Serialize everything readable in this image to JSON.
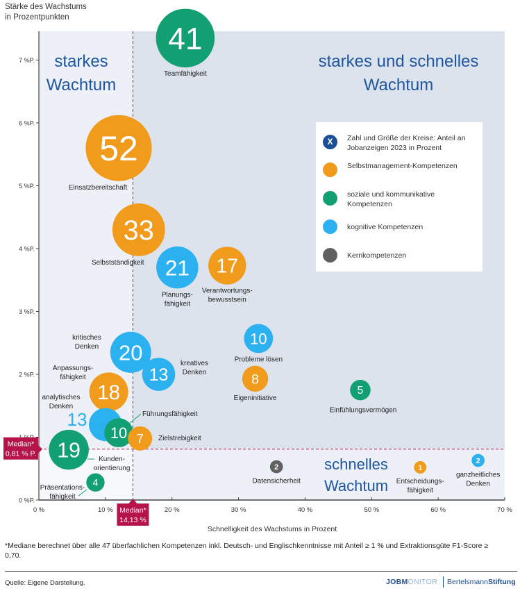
{
  "chart_data": {
    "type": "scatter",
    "subtype": "bubble",
    "y_axis_title": [
      "Stärke des Wachstums",
      "in Prozentpunkten"
    ],
    "xlabel": "Schnelligkeit des Wachstums in Prozent",
    "xlim": [
      0,
      70
    ],
    "ylim": [
      0,
      7.5
    ],
    "x_ticks": [
      0,
      10,
      20,
      30,
      40,
      50,
      60,
      70
    ],
    "x_tick_labels": [
      "0 %",
      "10 %",
      "20 %",
      "30 %",
      "40 %",
      "50 %",
      "60 %",
      "70 %"
    ],
    "y_ticks": [
      0,
      1,
      2,
      3,
      4,
      5,
      6,
      7
    ],
    "y_tick_labels": [
      "0 %P.",
      "1 %P.",
      "2 %P.",
      "3 %P.",
      "4 %P.",
      "5 %P.",
      "6 %P.",
      "7 %P."
    ],
    "median_x": {
      "value": 14.13,
      "label": [
        "Median*",
        "14,13 %"
      ]
    },
    "median_y": {
      "value": 0.81,
      "label": [
        "Median*",
        "0,81 % P."
      ]
    },
    "quadrant_labels": {
      "top_left": [
        "starkes",
        "Wachtum"
      ],
      "top_right": [
        "starkes und schnelles",
        "Wachtum"
      ],
      "bottom_right": [
        "schnelles",
        "Wachtum"
      ]
    },
    "colors": {
      "selbstmanagement": "#f09b1c",
      "sozial": "#12a073",
      "kognitiv": "#2bb1ef",
      "kern": "#616161",
      "legend_x": "#1b4f95",
      "median": "#b5144a",
      "quadrant_text": "#1f56a0",
      "bg_strong": "#dde3ed",
      "bg_weak": "#edf0f6"
    },
    "legend": [
      {
        "key": "size",
        "symbol": "X",
        "label": "Zahl und Größe der Kreise: Anteil an Jobanzeigen 2023 in Prozent"
      },
      {
        "key": "selbstmanagement",
        "label": "Selbstmanagement-Kompetenzen"
      },
      {
        "key": "sozial",
        "label": "soziale und kommunikative Kompetenzen"
      },
      {
        "key": "kognitiv",
        "label": "kognitive Kompetenzen"
      },
      {
        "key": "kern",
        "label": "Kernkompetenzen"
      }
    ],
    "points": [
      {
        "name": "Teamfähigkeit",
        "category": "sozial",
        "x": 22,
        "y": 7.35,
        "share": 41
      },
      {
        "name": "Einsatzbereitschaft",
        "category": "selbstmanagement",
        "x": 12,
        "y": 5.6,
        "share": 52
      },
      {
        "name": "Selbstständigkeit",
        "category": "selbstmanagement",
        "x": 15,
        "y": 4.3,
        "share": 33
      },
      {
        "name": "Planungsfähigkeit",
        "category": "kognitiv",
        "x": 20.8,
        "y": 3.7,
        "share": 21
      },
      {
        "name": "Verantwortungsbewusstsein",
        "category": "selbstmanagement",
        "x": 28.3,
        "y": 3.73,
        "share": 17
      },
      {
        "name": "kritisches Denken",
        "category": "kognitiv",
        "x": 13.8,
        "y": 2.35,
        "share": 20
      },
      {
        "name": "kreatives Denken",
        "category": "kognitiv",
        "x": 18,
        "y": 2.0,
        "share": 13
      },
      {
        "name": "Probleme lösen",
        "category": "kognitiv",
        "x": 33,
        "y": 2.57,
        "share": 10
      },
      {
        "name": "Eigeninitiative",
        "category": "selbstmanagement",
        "x": 32.5,
        "y": 1.93,
        "share": 8
      },
      {
        "name": "Einfühlungsvermögen",
        "category": "sozial",
        "x": 48.3,
        "y": 1.75,
        "share": 5
      },
      {
        "name": "Anpassungsfähigkeit",
        "category": "selbstmanagement",
        "x": 10.5,
        "y": 1.72,
        "share": 18
      },
      {
        "name": "analytisches Denken",
        "category": "kognitiv",
        "x": 10,
        "y": 1.2,
        "share": 13
      },
      {
        "name": "Führungsfähigkeit",
        "category": "sozial",
        "x": 12,
        "y": 1.07,
        "share": 10
      },
      {
        "name": "Zielstrebigkeit",
        "category": "selbstmanagement",
        "x": 15.2,
        "y": 0.98,
        "share": 7
      },
      {
        "name": "Kundenorientierung",
        "category": "sozial",
        "x": 4.5,
        "y": 0.8,
        "share": 19
      },
      {
        "name": "Präsentationsfähigkeit",
        "category": "sozial",
        "x": 8.5,
        "y": 0.28,
        "share": 4
      },
      {
        "name": "Datensicherheit",
        "category": "kern",
        "x": 35.7,
        "y": 0.53,
        "share": 2
      },
      {
        "name": "Entscheidungsfähigkeit",
        "category": "selbstmanagement",
        "x": 57.3,
        "y": 0.52,
        "share": 1
      },
      {
        "name": "ganzheitliches Denken",
        "category": "kognitiv",
        "x": 66,
        "y": 0.63,
        "share": 2
      }
    ]
  },
  "footnote": "*Mediane berechnet über alle 47 überfachlichen Kompetenzen inkl. Deutsch- und Englischkenntnisse mit Anteil ≥ 1 % und Extraktionsgüte F1-Score ≥ 0,70.",
  "source": "Quelle: Eigene Darstellung.",
  "logos": {
    "jobmonitor_a": "JOBM",
    "jobmonitor_b": "ONITOR",
    "bertelsmann_a": "Bertelsmann",
    "bertelsmann_b": "Stiftung"
  }
}
